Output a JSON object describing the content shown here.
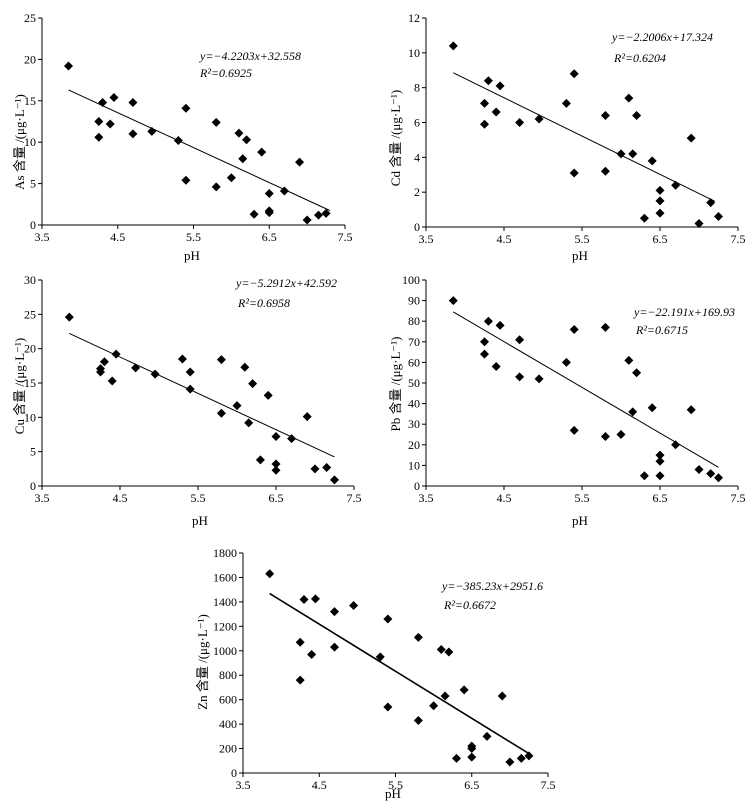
{
  "chart_data": [
    {
      "type": "scatter",
      "id": "as",
      "ylabel": "As 含量 /(μg·L⁻¹)",
      "xlabel": "pH",
      "xlim": [
        3.5,
        7.5
      ],
      "ylim": [
        0,
        25
      ],
      "xticks": [
        "3.5",
        "4.5",
        "5.5",
        "6.5",
        "7.5"
      ],
      "yticks": [
        "0",
        "5",
        "10",
        "15",
        "20",
        "25"
      ],
      "equation": "y=−4.2203x+32.558",
      "r2": "R²=0.6925",
      "fit": {
        "slope": -4.2203,
        "intercept": 32.558,
        "x_range": [
          3.85,
          7.3
        ]
      },
      "points": [
        [
          3.85,
          19.2
        ],
        [
          4.25,
          12.5
        ],
        [
          4.25,
          10.6
        ],
        [
          4.3,
          14.8
        ],
        [
          4.4,
          12.2
        ],
        [
          4.45,
          15.4
        ],
        [
          4.7,
          14.8
        ],
        [
          4.7,
          11.0
        ],
        [
          4.95,
          11.3
        ],
        [
          5.3,
          10.2
        ],
        [
          5.4,
          14.1
        ],
        [
          5.4,
          5.4
        ],
        [
          5.8,
          4.6
        ],
        [
          5.8,
          12.4
        ],
        [
          6.0,
          5.7
        ],
        [
          6.1,
          11.1
        ],
        [
          6.15,
          8.0
        ],
        [
          6.2,
          10.3
        ],
        [
          6.3,
          1.3
        ],
        [
          6.4,
          8.8
        ],
        [
          6.5,
          3.8
        ],
        [
          6.5,
          1.5
        ],
        [
          6.5,
          1.7
        ],
        [
          6.7,
          4.1
        ],
        [
          6.9,
          7.6
        ],
        [
          7.0,
          0.6
        ],
        [
          7.15,
          1.2
        ],
        [
          7.25,
          1.4
        ]
      ]
    },
    {
      "type": "scatter",
      "id": "cd",
      "ylabel": "Cd 含量 /(μg·L⁻¹)",
      "xlabel": "pH",
      "xlim": [
        3.5,
        7.5
      ],
      "ylim": [
        0,
        12
      ],
      "xticks": [
        "3.5",
        "4.5",
        "5.5",
        "6.5",
        "7.5"
      ],
      "yticks": [
        "0",
        "2",
        "4",
        "6",
        "8",
        "10",
        "12"
      ],
      "equation": "y=−2.2006x+17.324",
      "r2": "R²=0.6204",
      "fit": {
        "slope": -2.2006,
        "intercept": 17.324,
        "x_range": [
          3.85,
          7.2
        ]
      },
      "points": [
        [
          3.85,
          10.4
        ],
        [
          4.25,
          5.9
        ],
        [
          4.25,
          7.1
        ],
        [
          4.3,
          8.4
        ],
        [
          4.4,
          6.6
        ],
        [
          4.45,
          8.1
        ],
        [
          4.7,
          6.0
        ],
        [
          4.95,
          6.2
        ],
        [
          5.3,
          7.1
        ],
        [
          5.4,
          8.8
        ],
        [
          5.4,
          3.1
        ],
        [
          5.8,
          6.4
        ],
        [
          5.8,
          3.2
        ],
        [
          6.0,
          4.2
        ],
        [
          6.1,
          7.4
        ],
        [
          6.15,
          4.2
        ],
        [
          6.2,
          6.4
        ],
        [
          6.3,
          0.5
        ],
        [
          6.4,
          3.8
        ],
        [
          6.5,
          2.1
        ],
        [
          6.5,
          1.5
        ],
        [
          6.5,
          0.8
        ],
        [
          6.7,
          2.4
        ],
        [
          6.9,
          5.1
        ],
        [
          7.0,
          0.2
        ],
        [
          7.15,
          1.4
        ],
        [
          7.25,
          0.6
        ]
      ]
    },
    {
      "type": "scatter",
      "id": "cu",
      "ylabel": "Cu 含量 /(μg·L⁻¹)",
      "xlabel": "pH",
      "xlim": [
        3.5,
        7.5
      ],
      "ylim": [
        0,
        30
      ],
      "xticks": [
        "3.5",
        "4.5",
        "5.5",
        "6.5",
        "7.5"
      ],
      "yticks": [
        "0",
        "5",
        "10",
        "15",
        "20",
        "25",
        "30"
      ],
      "equation": "y=−5.2912x+42.592",
      "r2": "R²=0.6958",
      "fit": {
        "slope": -5.2912,
        "intercept": 42.592,
        "x_range": [
          3.85,
          7.25
        ]
      },
      "points": [
        [
          3.85,
          24.6
        ],
        [
          4.25,
          16.6
        ],
        [
          4.25,
          17.1
        ],
        [
          4.3,
          18.1
        ],
        [
          4.4,
          15.3
        ],
        [
          4.45,
          19.2
        ],
        [
          4.7,
          17.2
        ],
        [
          4.95,
          16.3
        ],
        [
          5.3,
          18.5
        ],
        [
          5.4,
          16.6
        ],
        [
          5.4,
          14.1
        ],
        [
          5.8,
          18.4
        ],
        [
          5.8,
          10.6
        ],
        [
          6.0,
          11.7
        ],
        [
          6.1,
          17.3
        ],
        [
          6.15,
          9.2
        ],
        [
          6.2,
          14.9
        ],
        [
          6.3,
          3.8
        ],
        [
          6.4,
          13.2
        ],
        [
          6.5,
          7.2
        ],
        [
          6.5,
          3.2
        ],
        [
          6.5,
          2.3
        ],
        [
          6.7,
          6.9
        ],
        [
          6.9,
          10.1
        ],
        [
          7.0,
          2.5
        ],
        [
          7.15,
          2.7
        ],
        [
          7.25,
          0.9
        ]
      ]
    },
    {
      "type": "scatter",
      "id": "pb",
      "ylabel": "Pb 含量 /(μg·L⁻¹)",
      "xlabel": "pH",
      "xlim": [
        3.5,
        7.5
      ],
      "ylim": [
        0,
        100
      ],
      "xticks": [
        "3.5",
        "4.5",
        "5.5",
        "6.5",
        "7.5"
      ],
      "yticks": [
        "0",
        "10",
        "20",
        "30",
        "40",
        "50",
        "60",
        "70",
        "80",
        "90",
        "100"
      ],
      "equation": "y=−22.191x+169.93",
      "r2": "R²=0.6715",
      "fit": {
        "slope": -22.191,
        "intercept": 169.93,
        "x_range": [
          3.85,
          7.25
        ]
      },
      "points": [
        [
          3.85,
          90
        ],
        [
          4.25,
          64
        ],
        [
          4.25,
          70
        ],
        [
          4.3,
          80
        ],
        [
          4.4,
          58
        ],
        [
          4.45,
          78
        ],
        [
          4.7,
          71
        ],
        [
          4.7,
          53
        ],
        [
          4.95,
          52
        ],
        [
          5.3,
          60
        ],
        [
          5.4,
          76
        ],
        [
          5.4,
          27
        ],
        [
          5.8,
          77
        ],
        [
          5.8,
          24
        ],
        [
          6.0,
          25
        ],
        [
          6.1,
          61
        ],
        [
          6.15,
          36
        ],
        [
          6.2,
          55
        ],
        [
          6.3,
          5
        ],
        [
          6.4,
          38
        ],
        [
          6.5,
          15
        ],
        [
          6.5,
          12
        ],
        [
          6.5,
          5
        ],
        [
          6.7,
          20
        ],
        [
          6.9,
          37
        ],
        [
          7.0,
          8
        ],
        [
          7.15,
          6
        ],
        [
          7.25,
          4
        ]
      ]
    },
    {
      "type": "scatter",
      "id": "zn",
      "ylabel": "Zn 含量 /(μg·L⁻¹)",
      "xlabel": "pH",
      "xlim": [
        3.5,
        7.5
      ],
      "ylim": [
        0,
        1800
      ],
      "xticks": [
        "3.5",
        "4.5",
        "5.5",
        "6.5",
        "7.5"
      ],
      "yticks": [
        "0",
        "200",
        "400",
        "600",
        "800",
        "1000",
        "1200",
        "1400",
        "1600",
        "1800"
      ],
      "equation": "y=−385.23x+2951.6",
      "r2": "R²=0.6672",
      "fit": {
        "slope": -385.23,
        "intercept": 2951.6,
        "x_range": [
          3.85,
          7.25
        ]
      },
      "points": [
        [
          3.85,
          1630
        ],
        [
          4.25,
          1070
        ],
        [
          4.25,
          760
        ],
        [
          4.3,
          1420
        ],
        [
          4.4,
          970
        ],
        [
          4.45,
          1425
        ],
        [
          4.7,
          1320
        ],
        [
          4.7,
          1030
        ],
        [
          4.95,
          1370
        ],
        [
          5.3,
          950
        ],
        [
          5.4,
          1260
        ],
        [
          5.4,
          540
        ],
        [
          5.8,
          1110
        ],
        [
          5.8,
          430
        ],
        [
          6.0,
          550
        ],
        [
          6.1,
          1010
        ],
        [
          6.15,
          630
        ],
        [
          6.2,
          990
        ],
        [
          6.3,
          120
        ],
        [
          6.4,
          680
        ],
        [
          6.5,
          220
        ],
        [
          6.5,
          200
        ],
        [
          6.5,
          130
        ],
        [
          6.7,
          300
        ],
        [
          6.9,
          630
        ],
        [
          7.0,
          90
        ],
        [
          7.15,
          120
        ],
        [
          7.25,
          140
        ]
      ]
    }
  ]
}
